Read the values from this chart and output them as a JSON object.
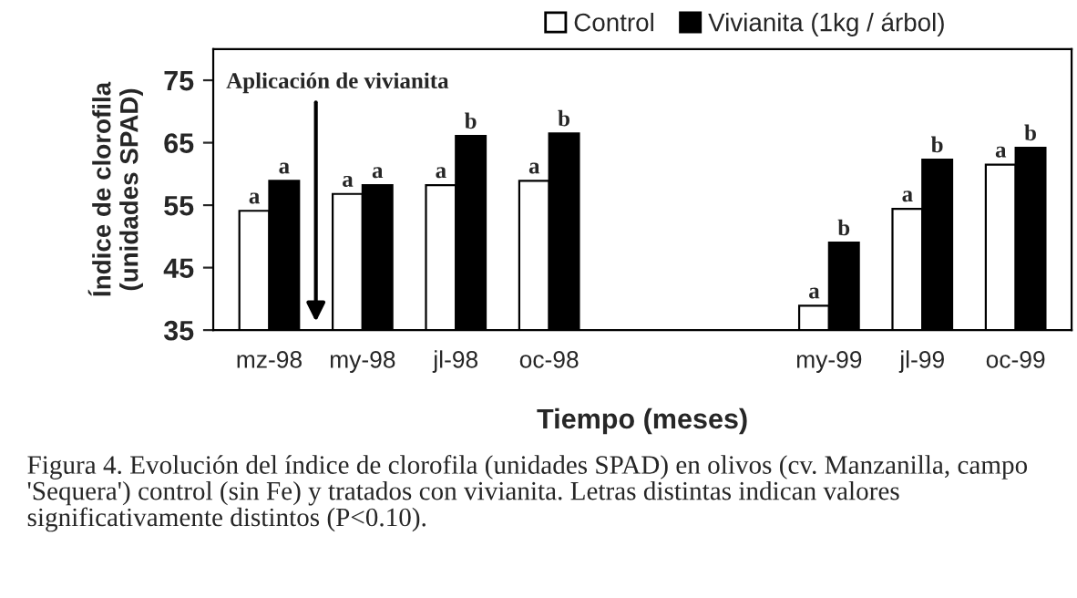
{
  "chart_data": {
    "type": "bar",
    "categories": [
      "mz-98",
      "my-98",
      "jl-98",
      "oc-98",
      null,
      null,
      "my-99",
      "jl-99",
      "oc-99"
    ],
    "series": [
      {
        "name": "Control",
        "color": "#ffffff",
        "values": [
          54.1,
          56.8,
          58.2,
          58.9,
          null,
          null,
          38.9,
          54.4,
          61.5
        ],
        "value_labels": [
          "a",
          "a",
          "a",
          "a",
          null,
          null,
          "a",
          "a",
          "a"
        ]
      },
      {
        "name": "Vivianita (1kg / árbol)",
        "color": "#000000",
        "values": [
          58.9,
          58.2,
          66.1,
          66.5,
          null,
          null,
          49.0,
          62.3,
          64.2
        ],
        "value_labels": [
          "a",
          "a",
          "b",
          "b",
          null,
          null,
          "b",
          "b",
          "b"
        ]
      }
    ],
    "xlabel": "Tiempo (meses)",
    "ylabel": "Índice de clorofila\n(unidades SPAD)",
    "ylim": [
      35,
      80
    ],
    "yticks": [
      35,
      45,
      55,
      65,
      75
    ],
    "grid": false,
    "legend": "top",
    "annotations": [
      "Aplicación de vivianita",
      "Figura 4. Evolución del índice de clorofila (unidades SPAD) en olivos (cv. Manzanilla, campo 'Sequera') control (sin Fe) y tratados con vivianita. Letras distintas indican valores significativamente distintos (P<0.10)."
    ]
  }
}
